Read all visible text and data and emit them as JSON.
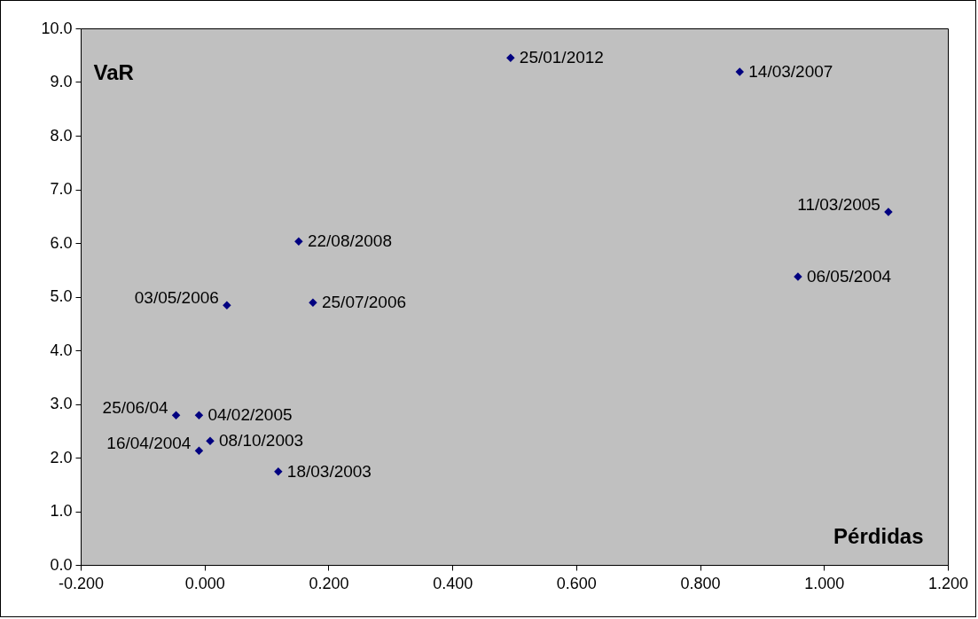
{
  "chart_data": {
    "type": "scatter",
    "xlabel": "Pérdidas",
    "ylabel": "VaR",
    "x": [
      0.494,
      0.864,
      1.104,
      0.958,
      0.152,
      0.036,
      0.175,
      -0.046,
      -0.009,
      0.009,
      -0.009,
      0.119
    ],
    "series": [
      {
        "color": "#000080",
        "values": [
          9.45,
          9.19,
          6.58,
          5.37,
          6.03,
          4.84,
          4.89,
          2.79,
          2.79,
          2.31,
          2.13,
          1.74
        ]
      }
    ],
    "annotations": [
      {
        "text": "25/01/2012",
        "x": 0.494,
        "y": 9.45
      },
      {
        "text": "14/03/2007",
        "x": 0.864,
        "y": 9.19
      },
      {
        "text": "11/03/2005",
        "x": 1.104,
        "y": 6.58
      },
      {
        "text": "06/05/2004",
        "x": 0.958,
        "y": 5.37
      },
      {
        "text": "22/08/2008",
        "x": 0.152,
        "y": 6.03
      },
      {
        "text": "03/05/2006",
        "x": 0.036,
        "y": 4.84
      },
      {
        "text": "25/07/2006",
        "x": 0.175,
        "y": 4.89
      },
      {
        "text": "25/06/04",
        "x": -0.046,
        "y": 2.79
      },
      {
        "text": "04/02/2005",
        "x": -0.009,
        "y": 2.79
      },
      {
        "text": "08/10/2003",
        "x": 0.009,
        "y": 2.31
      },
      {
        "text": "16/04/2004",
        "x": -0.009,
        "y": 2.13
      },
      {
        "text": "18/03/2003",
        "x": 0.119,
        "y": 1.74
      }
    ],
    "xlim": [
      -0.2,
      1.2
    ],
    "xticks": [
      {
        "value": -0.2,
        "label": "-0.200"
      },
      {
        "value": 0,
        "label": "0.000"
      },
      {
        "value": 0.2,
        "label": "0.200"
      },
      {
        "value": 0.4,
        "label": "0.400"
      },
      {
        "value": 0.6,
        "label": "0.600"
      },
      {
        "value": 0.8,
        "label": "0.800"
      },
      {
        "value": 1.0,
        "label": "1.000"
      },
      {
        "value": 1.2,
        "label": "1.200"
      }
    ],
    "ylim": [
      0,
      10
    ],
    "yticks": [
      {
        "value": 0,
        "label": "0.0"
      },
      {
        "value": 1,
        "label": "1.0"
      },
      {
        "value": 2,
        "label": "2.0"
      },
      {
        "value": 3,
        "label": "3.0"
      },
      {
        "value": 4,
        "label": "4.0"
      },
      {
        "value": 5,
        "label": "5.0"
      },
      {
        "value": 6,
        "label": "6.0"
      },
      {
        "value": 7,
        "label": "7.0"
      },
      {
        "value": 8,
        "label": "8.0"
      },
      {
        "value": 9,
        "label": "9.0"
      },
      {
        "value": 10,
        "label": "10.0"
      }
    ],
    "grid": false,
    "legend": false,
    "marker": "diamond"
  }
}
